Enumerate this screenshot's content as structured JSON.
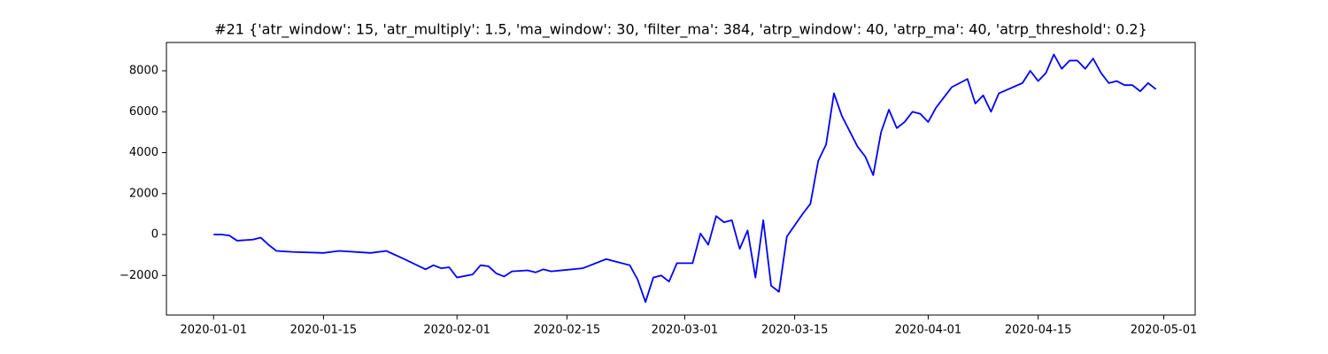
{
  "chart_data": {
    "type": "line",
    "title": "#21 {'atr_window': 15, 'atr_multiply': 1.5, 'ma_window': 30, 'filter_ma': 384, 'atrp_window': 40, 'atrp_ma': 40, 'atrp_threshold': 0.2}",
    "color": "#0000ff",
    "x": [
      "2020-01-01",
      "2020-01-02",
      "2020-01-03",
      "2020-01-04",
      "2020-01-06",
      "2020-01-07",
      "2020-01-08",
      "2020-01-09",
      "2020-01-11",
      "2020-01-15",
      "2020-01-17",
      "2020-01-21",
      "2020-01-23",
      "2020-01-25",
      "2020-01-28",
      "2020-01-29",
      "2020-01-30",
      "2020-01-31",
      "2020-02-01",
      "2020-02-03",
      "2020-02-04",
      "2020-02-05",
      "2020-02-06",
      "2020-02-07",
      "2020-02-08",
      "2020-02-10",
      "2020-02-11",
      "2020-02-12",
      "2020-02-13",
      "2020-02-17",
      "2020-02-20",
      "2020-02-21",
      "2020-02-23",
      "2020-02-24",
      "2020-02-25",
      "2020-02-26",
      "2020-02-27",
      "2020-02-28",
      "2020-02-29",
      "2020-03-02",
      "2020-03-03",
      "2020-03-04",
      "2020-03-05",
      "2020-03-06",
      "2020-03-07",
      "2020-03-08",
      "2020-03-09",
      "2020-03-10",
      "2020-03-11",
      "2020-03-12",
      "2020-03-13",
      "2020-03-14",
      "2020-03-16",
      "2020-03-17",
      "2020-03-18",
      "2020-03-19",
      "2020-03-20",
      "2020-03-21",
      "2020-03-23",
      "2020-03-24",
      "2020-03-25",
      "2020-03-26",
      "2020-03-27",
      "2020-03-28",
      "2020-03-29",
      "2020-03-30",
      "2020-03-31",
      "2020-04-01",
      "2020-04-02",
      "2020-04-03",
      "2020-04-04",
      "2020-04-06",
      "2020-04-07",
      "2020-04-08",
      "2020-04-09",
      "2020-04-10",
      "2020-04-13",
      "2020-04-14",
      "2020-04-15",
      "2020-04-16",
      "2020-04-17",
      "2020-04-18",
      "2020-04-19",
      "2020-04-20",
      "2020-04-21",
      "2020-04-22",
      "2020-04-23",
      "2020-04-24",
      "2020-04-25",
      "2020-04-26",
      "2020-04-27",
      "2020-04-28",
      "2020-04-29",
      "2020-04-30"
    ],
    "values": [
      0,
      0,
      -50,
      -300,
      -250,
      -150,
      -500,
      -800,
      -850,
      -900,
      -800,
      -900,
      -800,
      -1150,
      -1700,
      -1500,
      -1650,
      -1600,
      -2100,
      -1950,
      -1500,
      -1550,
      -1900,
      -2050,
      -1800,
      -1750,
      -1850,
      -1700,
      -1800,
      -1650,
      -1200,
      -1300,
      -1500,
      -2200,
      -3300,
      -2100,
      -2000,
      -2300,
      -1400,
      -1400,
      50,
      -500,
      900,
      600,
      700,
      -700,
      200,
      -2100,
      700,
      -2500,
      -2800,
      -100,
      1000,
      1500,
      3600,
      4400,
      6900,
      5800,
      4300,
      3800,
      2900,
      5000,
      6100,
      5200,
      5500,
      6000,
      5900,
      5500,
      6200,
      6700,
      7200,
      7600,
      6400,
      6800,
      6000,
      6900,
      7400,
      8000,
      7500,
      7900,
      8800,
      8100,
      8500,
      8500,
      8100,
      8600,
      7900,
      7400,
      7500,
      7300,
      7300,
      7000,
      7400,
      7100
    ],
    "xlim": [
      "2019-12-26",
      "2020-05-05"
    ],
    "xticks": [
      "2020-01-01",
      "2020-01-15",
      "2020-02-01",
      "2020-02-15",
      "2020-03-01",
      "2020-03-15",
      "2020-04-01",
      "2020-04-15",
      "2020-05-01"
    ],
    "ylim": [
      -3935,
      9384
    ],
    "yticks": [
      {
        "value": -2000,
        "label": "−2000"
      },
      0,
      2000,
      4000,
      6000,
      8000
    ]
  }
}
